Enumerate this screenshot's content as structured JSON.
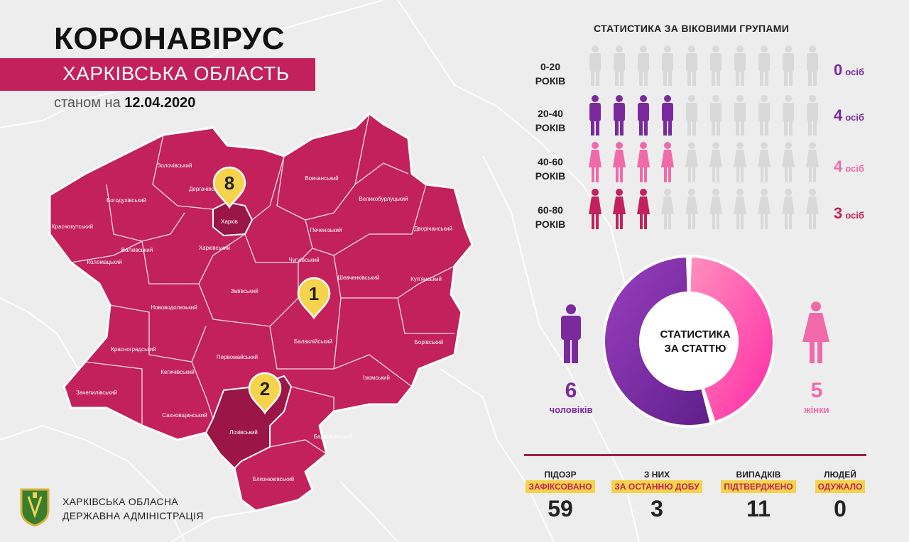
{
  "header": {
    "title": "КОРОНАВІРУС",
    "subtitle": "ХАРКІВСЬКА ОБЛАСТЬ",
    "date_prefix": "станом на",
    "date": "12.04.2020"
  },
  "map": {
    "regions": [
      "Золочівський",
      "Дергачівський",
      "Богодухівський",
      "Краснокутський",
      "Харків",
      "Харківський",
      "Валківський",
      "Коломацький",
      "Вовчанський",
      "Великобурлуцький",
      "Печенізький",
      "Дворічанський",
      "Чугуївський",
      "Шевченківський",
      "Куп'янський",
      "Зміївський",
      "Нововодолазький",
      "Балаклійський",
      "Красноградський",
      "Кегичівський",
      "Первомайський",
      "Ізюмський",
      "Борівський",
      "Зачепилівський",
      "Сахновщинський",
      "Лозівський",
      "Барвінківський",
      "Близнюківський"
    ],
    "markers": [
      {
        "count": "8",
        "region": "Харків"
      },
      {
        "count": "1",
        "region": "Балаклійський"
      },
      {
        "count": "2",
        "region": "Лозівський"
      }
    ],
    "colors": {
      "region": "#c2215b",
      "highlight": "#9c1547",
      "marker": "#f5d34a"
    }
  },
  "age_stats": {
    "title": "СТАТИСТИКА ЗА ВІКОВИМИ ГРУПАМИ",
    "unit": "осіб",
    "total_figures": 10,
    "groups": [
      {
        "label1": "0-20",
        "label2": "РОКІВ",
        "count": "0",
        "filled": 0,
        "figure": "male-icon",
        "color": "#7b2a9e"
      },
      {
        "label1": "20-40",
        "label2": "РОКІВ",
        "count": "4",
        "filled": 4,
        "figure": "male-icon",
        "color": "#7b2a9e"
      },
      {
        "label1": "40-60",
        "label2": "РОКІВ",
        "count": "4",
        "filled": 4,
        "figure": "female-icon",
        "color": "#f06aaa"
      },
      {
        "label1": "60-80",
        "label2": "РОКІВ",
        "count": "3",
        "filled": 3,
        "figure": "female-icon",
        "color": "#c2215b"
      }
    ],
    "empty_color": "#d9d9d9"
  },
  "gender_stats": {
    "title_line1": "СТАТИСТИКА",
    "title_line2": "ЗА СТАТТЮ",
    "male": {
      "count": 6,
      "label": "чоловіків",
      "color": "#7b2a9e"
    },
    "female": {
      "count": 5,
      "label": "жінки",
      "color": "#f06aaa"
    }
  },
  "summary": [
    {
      "line1": "ПІДОЗР",
      "line2": "ЗАФІКСОВАНО",
      "value": "59"
    },
    {
      "line1": "З НИХ",
      "line2": "ЗА ОСТАННЮ ДОБУ",
      "value": "3"
    },
    {
      "line1": "ВИПАДКІВ",
      "line2": "ПІДТВЕРДЖЕНО",
      "value": "11"
    },
    {
      "line1": "ЛЮДЕЙ",
      "line2": "ОДУЖАЛО",
      "value": "0"
    }
  ],
  "footer": {
    "logo_icon": "coat-of-arms-icon",
    "line1": "ХАРКІВСЬКА ОБЛАСНА",
    "line2": "ДЕРЖАВНА АДМІНІСТРАЦІЯ"
  }
}
